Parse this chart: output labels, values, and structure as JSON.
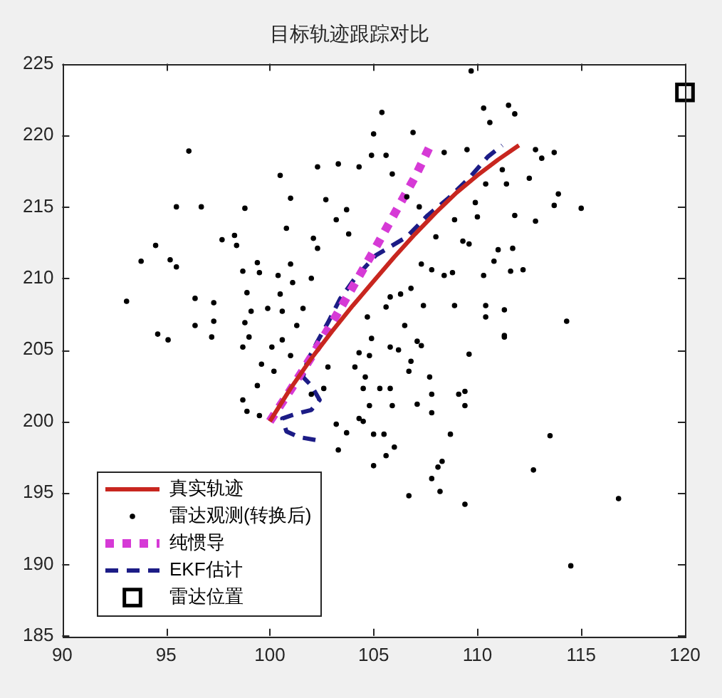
{
  "chart_data": {
    "type": "line",
    "title": "目标轨迹跟踪对比",
    "xlim": [
      90,
      120
    ],
    "xticks": [
      90,
      95,
      100,
      105,
      110,
      115,
      120
    ],
    "ylim": [
      185,
      225
    ],
    "yticks": [
      185,
      190,
      195,
      200,
      205,
      210,
      215,
      220,
      225
    ],
    "legend": "bottom left",
    "series": [
      {
        "name": "真实轨迹",
        "color": "#c8261f",
        "line_style": "solid",
        "x": [
          100,
          101,
          102,
          103,
          104,
          105,
          106,
          107,
          108,
          109,
          110,
          111,
          112
        ],
        "values": [
          200,
          202.3,
          204.4,
          206.3,
          208.1,
          209.8,
          211.5,
          213.1,
          214.6,
          216.0,
          217.2,
          218.3,
          219.3
        ]
      },
      {
        "name": "雷达观测(转换后)",
        "type": "scatter",
        "color": "#000000",
        "marker": "circle",
        "x": [
          96.1,
          95.5,
          96.7,
          98.8,
          100.5,
          101.0,
          102.3,
          103.3,
          104.3,
          105.0,
          104.9,
          102.7,
          103.7,
          103.2,
          100.8,
          97.7,
          98.3,
          98.4,
          102.1,
          102.3,
          103.8,
          94.5,
          93.8,
          95.2,
          95.5,
          93.1,
          98.7,
          99.4,
          99.5,
          100.4,
          101.0,
          101.1,
          102.0,
          96.4,
          97.3,
          96.4,
          97.3,
          98.9,
          99.1,
          98.8,
          99.9,
          100.6,
          100.5,
          101.6,
          101.3,
          94.6,
          95.1,
          97.2,
          99.0,
          100.6,
          109.7,
          105.4,
          110.3,
          110.6,
          111.5,
          111.8,
          106.9,
          108.4,
          109.5,
          112.8,
          113.7,
          112.5,
          113.1,
          113.9,
          113.7,
          115.0,
          112.8,
          111.8,
          111.2,
          111.4,
          110.4,
          109.9,
          110.0,
          108.9,
          109.3,
          109.6,
          108.0,
          107.2,
          111.0,
          111.7,
          110.8,
          110.3,
          111.6,
          112.2,
          107.3,
          107.8,
          108.4,
          108.8,
          106.8,
          106.3,
          105.8,
          108.9,
          110.4,
          110.4,
          111.3,
          114.3,
          107.4,
          105.6,
          104.7,
          106.5,
          107.1,
          111.3,
          104.9,
          105.8,
          105.6,
          105.9,
          106.6,
          98.7,
          99.4,
          99.6,
          100.2,
          100.1,
          101.0,
          98.7,
          98.9,
          99.5,
          102.0,
          102.6,
          102.8,
          103.2,
          103.3,
          103.7,
          104.3,
          104.5,
          104.1,
          104.3,
          105.0,
          104.8,
          104.8,
          106.2,
          107.3,
          106.8,
          104.6,
          105.3,
          105.8,
          106.7,
          107.7,
          107.8,
          105.9,
          107.1,
          109.1,
          109.4,
          109.4,
          109.6,
          111.3,
          107.8,
          104.5,
          105.0,
          105.5,
          108.7,
          106.0,
          105.6,
          108.3,
          108.1,
          107.8,
          108.2,
          106.7,
          109.4,
          113.5,
          112.7,
          116.8,
          114.5
        ],
        "values": [
          218.9,
          215.0,
          215.0,
          214.9,
          217.2,
          215.6,
          217.8,
          218.0,
          217.8,
          220.1,
          218.6,
          215.5,
          214.8,
          214.1,
          213.5,
          212.7,
          213.0,
          212.3,
          212.8,
          212.1,
          213.1,
          212.3,
          211.2,
          211.3,
          210.8,
          208.4,
          210.5,
          211.1,
          210.4,
          210.2,
          211.0,
          209.7,
          210.0,
          208.6,
          208.3,
          206.7,
          207.0,
          209.0,
          207.7,
          206.9,
          207.9,
          207.7,
          208.9,
          207.9,
          206.7,
          206.1,
          205.7,
          205.9,
          205.9,
          205.7,
          224.5,
          221.6,
          221.9,
          220.9,
          222.1,
          221.5,
          220.2,
          218.8,
          219.0,
          219.0,
          218.8,
          217.0,
          218.4,
          215.9,
          215.1,
          214.9,
          214.0,
          214.4,
          217.6,
          216.6,
          216.6,
          215.3,
          214.3,
          214.1,
          212.6,
          212.4,
          212.9,
          215.0,
          212.0,
          212.1,
          211.2,
          210.2,
          210.5,
          210.6,
          211.0,
          210.6,
          210.2,
          210.4,
          209.3,
          208.9,
          208.7,
          208.1,
          208.1,
          207.3,
          207.8,
          207.0,
          208.1,
          208.0,
          207.3,
          206.7,
          205.6,
          205.9,
          205.8,
          205.2,
          218.6,
          217.3,
          215.7,
          205.2,
          202.5,
          204.0,
          203.5,
          205.2,
          204.6,
          201.5,
          200.7,
          200.4,
          201.9,
          202.3,
          203.8,
          199.8,
          198.0,
          199.2,
          200.2,
          202.3,
          203.8,
          204.8,
          196.9,
          201.1,
          204.6,
          205.0,
          205.3,
          204.2,
          203.1,
          202.3,
          202.3,
          203.5,
          203.1,
          201.9,
          201.1,
          201.2,
          201.9,
          202.1,
          201.1,
          204.7,
          206.0,
          200.6,
          200.0,
          199.1,
          199.1,
          199.1,
          198.2,
          197.6,
          197.2,
          196.8,
          196.0,
          195.1,
          194.8,
          194.2,
          199.0,
          196.6,
          194.6,
          189.9
        ]
      },
      {
        "name": "纯惯导",
        "color": "#d63ad6",
        "line_style": "dotted",
        "x": [
          100,
          101,
          102,
          103,
          104,
          105,
          106,
          107,
          107.8
        ],
        "values": [
          200,
          202.2,
          204.5,
          206.9,
          209.4,
          211.9,
          214.5,
          217.1,
          219.5
        ]
      },
      {
        "name": "EKF估计",
        "color": "#1c1c86",
        "line_style": "dashed",
        "x": [
          102.2,
          101.4,
          100.8,
          100.6,
          101.2,
          102.0,
          102.4,
          102.0,
          101.6,
          101.8,
          102.3,
          102.8,
          103.4,
          104.1,
          105.1,
          106.6,
          107.6,
          108.6,
          109.6,
          110.5,
          111.2
        ],
        "values": [
          198.7,
          198.9,
          199.3,
          200.2,
          200.5,
          200.8,
          201.5,
          202.5,
          203.1,
          204.2,
          205.6,
          206.9,
          208.6,
          210.0,
          211.6,
          212.9,
          214.4,
          215.6,
          217.0,
          218.5,
          219.3
        ]
      },
      {
        "name": "雷达位置",
        "type": "scatter",
        "color": "#000000",
        "marker": "square",
        "x": [
          120
        ],
        "values": [
          223
        ]
      }
    ]
  }
}
